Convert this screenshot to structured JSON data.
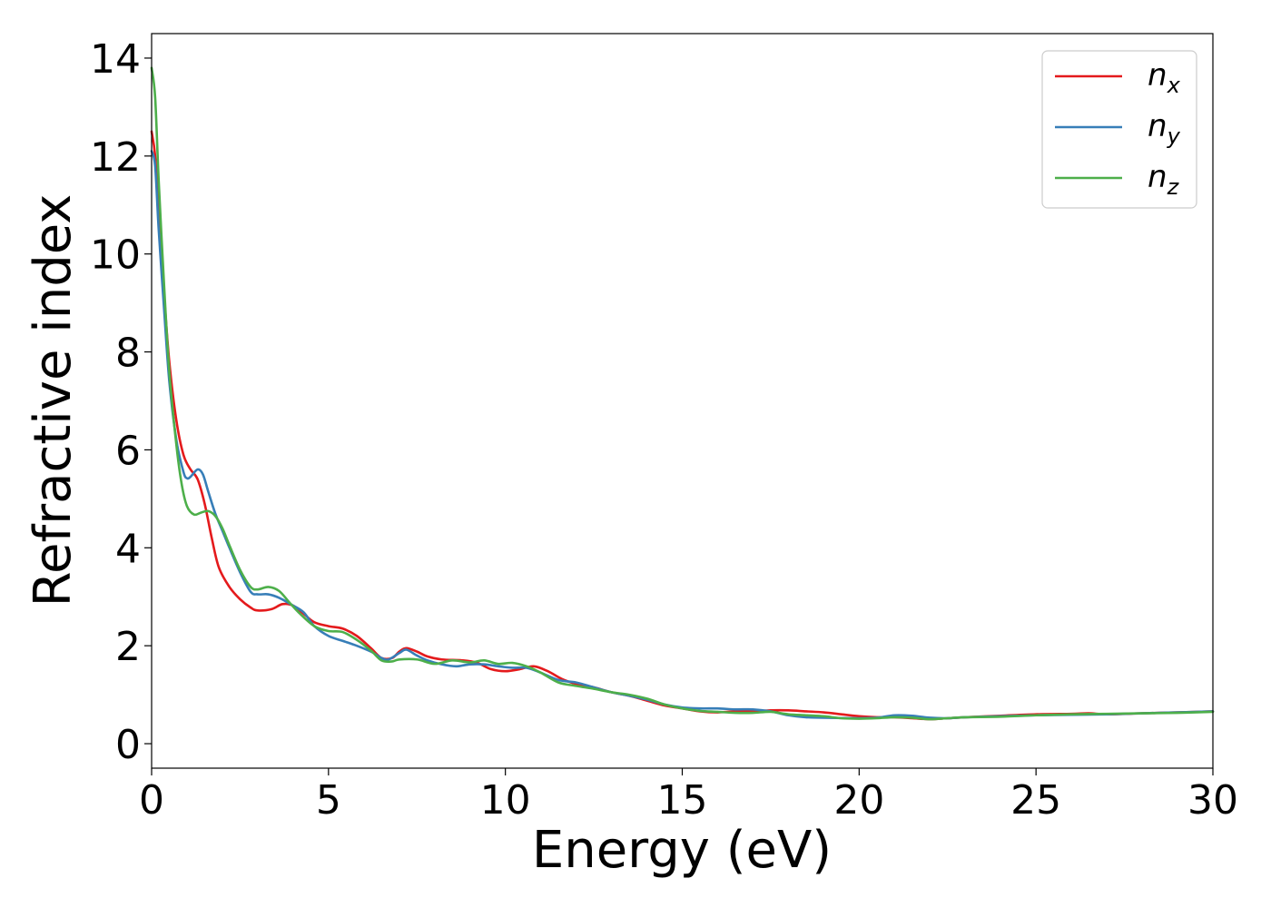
{
  "chart_data": {
    "type": "line",
    "title": "",
    "xlabel": "Energy (eV)",
    "ylabel": "Refractive index",
    "xlim": [
      0,
      30
    ],
    "ylim": [
      -0.5,
      14.5
    ],
    "xticks": [
      0,
      5,
      10,
      15,
      20,
      25,
      30
    ],
    "yticks": [
      0,
      2,
      4,
      6,
      8,
      10,
      12,
      14
    ],
    "grid": false,
    "legend_position": "top-right",
    "series": [
      {
        "name": "n",
        "subscript": "x",
        "color": "#e41a1c",
        "points": [
          [
            0,
            12.5
          ],
          [
            0.1,
            12.0
          ],
          [
            0.2,
            10.8
          ],
          [
            0.35,
            9.2
          ],
          [
            0.5,
            7.8
          ],
          [
            0.7,
            6.6
          ],
          [
            0.9,
            5.9
          ],
          [
            1.1,
            5.6
          ],
          [
            1.3,
            5.4
          ],
          [
            1.5,
            4.9
          ],
          [
            1.7,
            4.2
          ],
          [
            1.9,
            3.6
          ],
          [
            2.2,
            3.2
          ],
          [
            2.5,
            2.95
          ],
          [
            2.8,
            2.78
          ],
          [
            3.0,
            2.72
          ],
          [
            3.4,
            2.75
          ],
          [
            3.7,
            2.85
          ],
          [
            4.0,
            2.82
          ],
          [
            4.3,
            2.65
          ],
          [
            4.6,
            2.48
          ],
          [
            5.0,
            2.4
          ],
          [
            5.4,
            2.35
          ],
          [
            5.8,
            2.2
          ],
          [
            6.2,
            1.95
          ],
          [
            6.5,
            1.75
          ],
          [
            6.8,
            1.75
          ],
          [
            7.0,
            1.88
          ],
          [
            7.2,
            1.95
          ],
          [
            7.5,
            1.88
          ],
          [
            7.8,
            1.78
          ],
          [
            8.2,
            1.72
          ],
          [
            8.8,
            1.7
          ],
          [
            9.2,
            1.65
          ],
          [
            9.6,
            1.52
          ],
          [
            10.0,
            1.48
          ],
          [
            10.4,
            1.52
          ],
          [
            10.8,
            1.58
          ],
          [
            11.2,
            1.48
          ],
          [
            11.6,
            1.32
          ],
          [
            12.0,
            1.22
          ],
          [
            12.5,
            1.15
          ],
          [
            13.0,
            1.05
          ],
          [
            13.5,
            0.98
          ],
          [
            14.0,
            0.88
          ],
          [
            14.5,
            0.78
          ],
          [
            15.0,
            0.72
          ],
          [
            15.5,
            0.66
          ],
          [
            16.0,
            0.64
          ],
          [
            16.5,
            0.66
          ],
          [
            17.0,
            0.66
          ],
          [
            17.5,
            0.68
          ],
          [
            18.0,
            0.68
          ],
          [
            18.5,
            0.66
          ],
          [
            19.0,
            0.64
          ],
          [
            19.5,
            0.6
          ],
          [
            20.0,
            0.56
          ],
          [
            20.5,
            0.54
          ],
          [
            21.0,
            0.54
          ],
          [
            21.5,
            0.52
          ],
          [
            22.0,
            0.5
          ],
          [
            22.5,
            0.52
          ],
          [
            23.0,
            0.54
          ],
          [
            24.0,
            0.57
          ],
          [
            25.0,
            0.6
          ],
          [
            26.0,
            0.61
          ],
          [
            26.5,
            0.62
          ],
          [
            27.0,
            0.6
          ],
          [
            28.0,
            0.62
          ],
          [
            29.0,
            0.64
          ],
          [
            30.0,
            0.66
          ]
        ]
      },
      {
        "name": "n",
        "subscript": "y",
        "color": "#377eb8",
        "points": [
          [
            0,
            12.1
          ],
          [
            0.1,
            11.8
          ],
          [
            0.2,
            10.5
          ],
          [
            0.35,
            8.9
          ],
          [
            0.5,
            7.4
          ],
          [
            0.7,
            6.2
          ],
          [
            0.9,
            5.55
          ],
          [
            1.0,
            5.42
          ],
          [
            1.1,
            5.45
          ],
          [
            1.3,
            5.6
          ],
          [
            1.45,
            5.5
          ],
          [
            1.6,
            5.15
          ],
          [
            1.8,
            4.7
          ],
          [
            2.0,
            4.35
          ],
          [
            2.2,
            4.0
          ],
          [
            2.5,
            3.5
          ],
          [
            2.8,
            3.1
          ],
          [
            3.0,
            3.05
          ],
          [
            3.3,
            3.05
          ],
          [
            3.6,
            2.98
          ],
          [
            4.0,
            2.82
          ],
          [
            4.3,
            2.68
          ],
          [
            4.6,
            2.4
          ],
          [
            5.0,
            2.2
          ],
          [
            5.4,
            2.1
          ],
          [
            5.8,
            2.0
          ],
          [
            6.2,
            1.88
          ],
          [
            6.5,
            1.75
          ],
          [
            6.7,
            1.72
          ],
          [
            7.0,
            1.85
          ],
          [
            7.2,
            1.92
          ],
          [
            7.5,
            1.8
          ],
          [
            7.8,
            1.7
          ],
          [
            8.2,
            1.62
          ],
          [
            8.6,
            1.58
          ],
          [
            9.0,
            1.62
          ],
          [
            9.4,
            1.62
          ],
          [
            9.8,
            1.58
          ],
          [
            10.2,
            1.55
          ],
          [
            10.6,
            1.55
          ],
          [
            11.0,
            1.45
          ],
          [
            11.5,
            1.3
          ],
          [
            12.0,
            1.25
          ],
          [
            12.5,
            1.15
          ],
          [
            13.0,
            1.05
          ],
          [
            13.5,
            0.98
          ],
          [
            14.0,
            0.9
          ],
          [
            14.5,
            0.8
          ],
          [
            15.0,
            0.74
          ],
          [
            15.5,
            0.72
          ],
          [
            16.0,
            0.72
          ],
          [
            16.5,
            0.7
          ],
          [
            17.0,
            0.7
          ],
          [
            17.5,
            0.66
          ],
          [
            18.0,
            0.58
          ],
          [
            18.5,
            0.54
          ],
          [
            19.0,
            0.53
          ],
          [
            20.0,
            0.52
          ],
          [
            20.5,
            0.53
          ],
          [
            21.0,
            0.58
          ],
          [
            21.5,
            0.57
          ],
          [
            22.0,
            0.53
          ],
          [
            22.5,
            0.52
          ],
          [
            23.0,
            0.54
          ],
          [
            24.0,
            0.56
          ],
          [
            25.0,
            0.58
          ],
          [
            26.0,
            0.59
          ],
          [
            27.0,
            0.6
          ],
          [
            28.0,
            0.62
          ],
          [
            29.0,
            0.64
          ],
          [
            30.0,
            0.66
          ]
        ]
      },
      {
        "name": "n",
        "subscript": "z",
        "color": "#4daf4a",
        "points": [
          [
            0,
            13.8
          ],
          [
            0.1,
            13.2
          ],
          [
            0.2,
            11.5
          ],
          [
            0.35,
            9.4
          ],
          [
            0.5,
            7.6
          ],
          [
            0.7,
            6.1
          ],
          [
            0.85,
            5.3
          ],
          [
            1.0,
            4.85
          ],
          [
            1.2,
            4.68
          ],
          [
            1.4,
            4.72
          ],
          [
            1.6,
            4.75
          ],
          [
            1.8,
            4.65
          ],
          [
            2.0,
            4.4
          ],
          [
            2.2,
            4.05
          ],
          [
            2.5,
            3.55
          ],
          [
            2.8,
            3.2
          ],
          [
            3.0,
            3.15
          ],
          [
            3.3,
            3.2
          ],
          [
            3.6,
            3.12
          ],
          [
            3.9,
            2.88
          ],
          [
            4.2,
            2.65
          ],
          [
            4.6,
            2.4
          ],
          [
            5.0,
            2.3
          ],
          [
            5.4,
            2.28
          ],
          [
            5.8,
            2.12
          ],
          [
            6.2,
            1.9
          ],
          [
            6.5,
            1.7
          ],
          [
            6.8,
            1.68
          ],
          [
            7.0,
            1.72
          ],
          [
            7.5,
            1.72
          ],
          [
            8.0,
            1.63
          ],
          [
            8.5,
            1.7
          ],
          [
            9.0,
            1.66
          ],
          [
            9.4,
            1.7
          ],
          [
            9.8,
            1.63
          ],
          [
            10.2,
            1.65
          ],
          [
            10.6,
            1.58
          ],
          [
            11.0,
            1.45
          ],
          [
            11.5,
            1.25
          ],
          [
            12.0,
            1.18
          ],
          [
            12.5,
            1.12
          ],
          [
            13.0,
            1.05
          ],
          [
            13.5,
            1.0
          ],
          [
            14.0,
            0.92
          ],
          [
            14.5,
            0.8
          ],
          [
            15.0,
            0.72
          ],
          [
            15.5,
            0.67
          ],
          [
            16.0,
            0.65
          ],
          [
            16.5,
            0.63
          ],
          [
            17.0,
            0.63
          ],
          [
            17.5,
            0.65
          ],
          [
            18.0,
            0.6
          ],
          [
            18.5,
            0.58
          ],
          [
            19.0,
            0.56
          ],
          [
            19.5,
            0.52
          ],
          [
            20.0,
            0.51
          ],
          [
            20.5,
            0.52
          ],
          [
            21.0,
            0.54
          ],
          [
            21.5,
            0.53
          ],
          [
            22.0,
            0.5
          ],
          [
            22.5,
            0.52
          ],
          [
            23.0,
            0.54
          ],
          [
            24.0,
            0.55
          ],
          [
            25.0,
            0.58
          ],
          [
            26.0,
            0.6
          ],
          [
            27.0,
            0.61
          ],
          [
            28.0,
            0.62
          ],
          [
            29.0,
            0.63
          ],
          [
            30.0,
            0.65
          ]
        ]
      }
    ]
  }
}
